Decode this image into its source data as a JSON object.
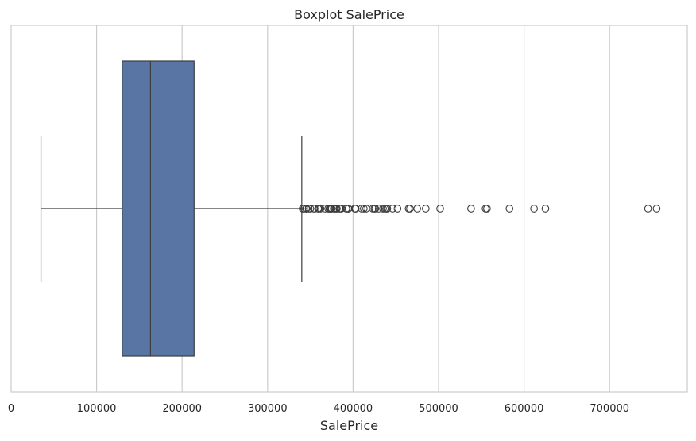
{
  "chart_data": {
    "type": "boxplot",
    "orientation": "horizontal",
    "title": "Boxplot SalePrice",
    "xlabel": "SalePrice",
    "ylabel": "",
    "xlim": [
      0,
      790000
    ],
    "x_ticks": [
      0,
      100000,
      200000,
      300000,
      400000,
      500000,
      600000,
      700000
    ],
    "x_tick_labels": [
      "0",
      "100000",
      "200000",
      "300000",
      "400000",
      "500000",
      "600000",
      "700000"
    ],
    "grid": "vertical",
    "box": {
      "whisker_low": 34900,
      "q1": 129975,
      "median": 163000,
      "q3": 214000,
      "whisker_high": 340000,
      "color": "#5975a4",
      "edge_color": "#3d3d3d"
    },
    "outliers": [
      341000,
      342643,
      345000,
      345474,
      348000,
      350000,
      354000,
      355000,
      359100,
      360000,
      361919,
      367294,
      370878,
      372402,
      372500,
      374000,
      375000,
      377426,
      378500,
      380000,
      381000,
      383970,
      385000,
      386250,
      392000,
      392500,
      394432,
      394617,
      402000,
      402861,
      403000,
      410000,
      412500,
      415298,
      423000,
      424870,
      426000,
      430000,
      435000,
      437154,
      438780,
      440000,
      446261,
      451950,
      465000,
      466500,
      475000,
      485000,
      501837,
      538000,
      555000,
      556581,
      582933,
      611657,
      625000,
      745000,
      755000
    ]
  }
}
